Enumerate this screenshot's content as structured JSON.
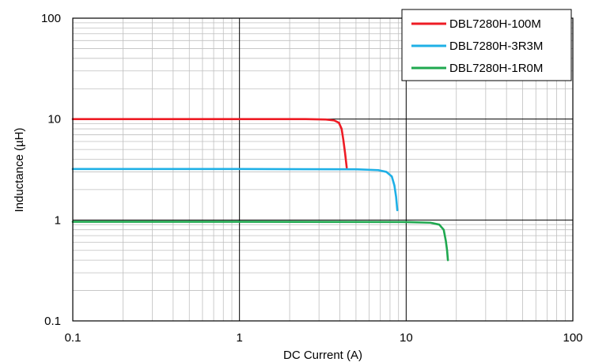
{
  "chart_data": {
    "type": "line",
    "x_scale": "log",
    "y_scale": "log",
    "xlim": [
      0.1,
      100
    ],
    "ylim": [
      0.1,
      100
    ],
    "xlabel": "DC Current (A)",
    "ylabel": "Inductance (µH)",
    "x_ticks": [
      "0.1",
      "1",
      "10",
      "100"
    ],
    "y_ticks": [
      "0.1",
      "1",
      "10",
      "100"
    ],
    "grid": "major and minor",
    "legend_position": "top-right",
    "series": [
      {
        "name": "DBL7280H-100M",
        "color": "#ee1c25",
        "points": [
          [
            0.1,
            10.0
          ],
          [
            1,
            10.0
          ],
          [
            2.5,
            9.99
          ],
          [
            3.3,
            9.9
          ],
          [
            3.7,
            9.7
          ],
          [
            3.95,
            9.2
          ],
          [
            4.1,
            8.0
          ],
          [
            4.2,
            6.2
          ],
          [
            4.3,
            4.6
          ],
          [
            4.4,
            3.3
          ]
        ]
      },
      {
        "name": "DBL7280H-3R3M",
        "color": "#1fb0e6",
        "points": [
          [
            0.1,
            3.2
          ],
          [
            1,
            3.2
          ],
          [
            5,
            3.18
          ],
          [
            6.8,
            3.12
          ],
          [
            7.6,
            3.0
          ],
          [
            8.2,
            2.7
          ],
          [
            8.5,
            2.2
          ],
          [
            8.7,
            1.7
          ],
          [
            8.85,
            1.25
          ]
        ]
      },
      {
        "name": "DBL7280H-1R0M",
        "color": "#1fa84f",
        "points": [
          [
            0.1,
            0.96
          ],
          [
            1,
            0.96
          ],
          [
            10,
            0.955
          ],
          [
            14,
            0.94
          ],
          [
            15.8,
            0.9
          ],
          [
            16.8,
            0.8
          ],
          [
            17.3,
            0.62
          ],
          [
            17.6,
            0.5
          ],
          [
            17.8,
            0.4
          ]
        ]
      }
    ]
  }
}
